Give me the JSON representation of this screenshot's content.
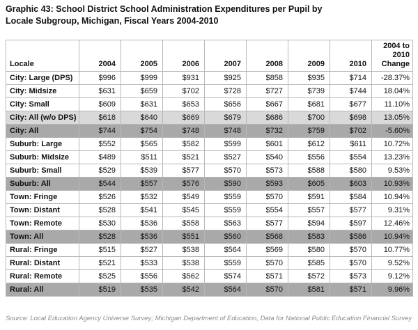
{
  "page": {
    "title_line1": "Graphic 43: School District School Administration Expenditures per Pupil by",
    "title_line2": "Locale Subgroup, Michigan, Fiscal Years 2004-2010",
    "source_note": "Source: Local Education Agency Universe Survey; Michigan Department of Education, Data for National Public Education Financial Survey"
  },
  "colors": {
    "row_shade_light": "#d9d9d9",
    "row_shade_dark": "#a9a9a9",
    "table_border": "#b7b7b7",
    "source_text": "#8a8a8a"
  },
  "chart_data": {
    "type": "table",
    "title": "Graphic 43: School District School Administration Expenditures per Pupil by Locale Subgroup, Michigan, Fiscal Years 2004-2010",
    "columns": [
      "Locale",
      "2004",
      "2005",
      "2006",
      "2007",
      "2008",
      "2009",
      "2010",
      "2004 to 2010 Change"
    ],
    "rows": [
      {
        "locale": "City: Large (DPS)",
        "values": [
          "$996",
          "$999",
          "$931",
          "$925",
          "$858",
          "$935",
          "$714",
          "-28.37%"
        ],
        "shade": "none"
      },
      {
        "locale": "City: Midsize",
        "values": [
          "$631",
          "$659",
          "$702",
          "$728",
          "$727",
          "$739",
          "$744",
          "18.04%"
        ],
        "shade": "none"
      },
      {
        "locale": "City: Small",
        "values": [
          "$609",
          "$631",
          "$653",
          "$656",
          "$667",
          "$681",
          "$677",
          "11.10%"
        ],
        "shade": "none"
      },
      {
        "locale": "City: All (w/o DPS)",
        "values": [
          "$618",
          "$640",
          "$669",
          "$679",
          "$686",
          "$700",
          "$698",
          "13.05%"
        ],
        "shade": "light"
      },
      {
        "locale": "City: All",
        "values": [
          "$744",
          "$754",
          "$748",
          "$748",
          "$732",
          "$759",
          "$702",
          "-5.60%"
        ],
        "shade": "dark"
      },
      {
        "locale": "Suburb: Large",
        "values": [
          "$552",
          "$565",
          "$582",
          "$599",
          "$601",
          "$612",
          "$611",
          "10.72%"
        ],
        "shade": "none"
      },
      {
        "locale": "Suburb: Midsize",
        "values": [
          "$489",
          "$511",
          "$521",
          "$527",
          "$540",
          "$556",
          "$554",
          "13.23%"
        ],
        "shade": "none"
      },
      {
        "locale": "Suburb: Small",
        "values": [
          "$529",
          "$539",
          "$577",
          "$570",
          "$573",
          "$588",
          "$580",
          "9.53%"
        ],
        "shade": "none"
      },
      {
        "locale": "Suburb: All",
        "values": [
          "$544",
          "$557",
          "$576",
          "$590",
          "$593",
          "$605",
          "$603",
          "10.93%"
        ],
        "shade": "dark"
      },
      {
        "locale": "Town: Fringe",
        "values": [
          "$526",
          "$532",
          "$549",
          "$559",
          "$570",
          "$591",
          "$584",
          "10.94%"
        ],
        "shade": "none"
      },
      {
        "locale": "Town: Distant",
        "values": [
          "$528",
          "$541",
          "$545",
          "$559",
          "$554",
          "$557",
          "$577",
          "9.31%"
        ],
        "shade": "none"
      },
      {
        "locale": "Town: Remote",
        "values": [
          "$530",
          "$536",
          "$558",
          "$563",
          "$577",
          "$594",
          "$597",
          "12.46%"
        ],
        "shade": "none"
      },
      {
        "locale": "Town: All",
        "values": [
          "$528",
          "$536",
          "$551",
          "$560",
          "$568",
          "$583",
          "$586",
          "10.94%"
        ],
        "shade": "dark"
      },
      {
        "locale": "Rural: Fringe",
        "values": [
          "$515",
          "$527",
          "$538",
          "$564",
          "$569",
          "$580",
          "$570",
          "10.77%"
        ],
        "shade": "none"
      },
      {
        "locale": "Rural: Distant",
        "values": [
          "$521",
          "$533",
          "$538",
          "$559",
          "$570",
          "$585",
          "$570",
          "9.52%"
        ],
        "shade": "none"
      },
      {
        "locale": "Rural: Remote",
        "values": [
          "$525",
          "$556",
          "$562",
          "$574",
          "$571",
          "$572",
          "$573",
          "9.12%"
        ],
        "shade": "none"
      },
      {
        "locale": "Rural: All",
        "values": [
          "$519",
          "$535",
          "$542",
          "$564",
          "$570",
          "$581",
          "$571",
          "9.96%"
        ],
        "shade": "dark"
      }
    ]
  }
}
